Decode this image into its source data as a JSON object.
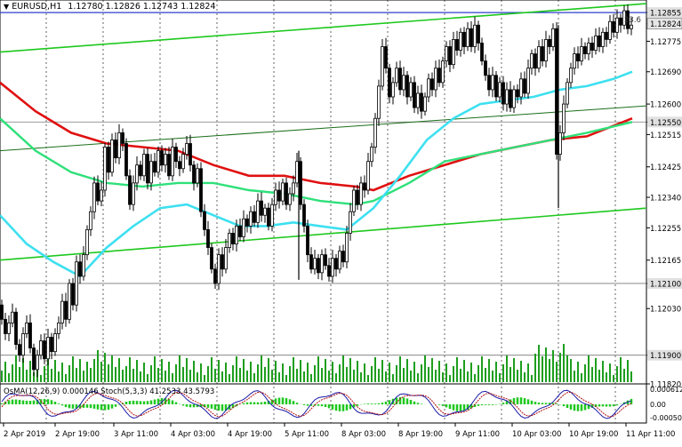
{
  "header": {
    "symbol_label": "EURUSD,H1",
    "ohlc": "1.12780 1.12826 1.12743 1.12824"
  },
  "fib_label": "23.6",
  "chart_data": [
    {
      "type": "line",
      "title": "EURUSD,H1",
      "yticks": [
        "1.12855",
        "1.12824",
        "1.12775",
        "1.12690",
        "1.12600",
        "1.12550",
        "1.12515",
        "1.12425",
        "1.12340",
        "1.12255",
        "1.12165",
        "1.12100",
        "1.12030",
        "1.11900",
        "1.11820"
      ],
      "highlighted_levels": [
        {
          "value": "1.12855",
          "color": "#2b3fcc"
        },
        {
          "value": "1.12550",
          "color": "#777777"
        },
        {
          "value": "1.12100",
          "color": "#777777"
        },
        {
          "value": "1.11900",
          "color": "#777777"
        }
      ],
      "current_price": "1.12824",
      "xticks": [
        "2 Apr 2019",
        "2 Apr 19:00",
        "3 Apr 11:00",
        "4 Apr 03:00",
        "4 Apr 19:00",
        "5 Apr 11:00",
        "8 Apr 03:00",
        "8 Apr 19:00",
        "9 Apr 11:00",
        "10 Apr 03:00",
        "10 Apr 19:00",
        "11 Apr 11:00"
      ],
      "ylim": [
        1.1182,
        1.1289
      ],
      "series": [],
      "price_path": [
        [
          0,
          1.1204
        ],
        [
          4,
          1.12
        ],
        [
          8,
          1.1196
        ],
        [
          12,
          1.1199
        ],
        [
          16,
          1.1202
        ],
        [
          20,
          1.1193
        ],
        [
          24,
          1.119
        ],
        [
          28,
          1.1196
        ],
        [
          32,
          1.1199
        ],
        [
          36,
          1.1192
        ],
        [
          40,
          1.1186
        ],
        [
          44,
          1.119
        ],
        [
          48,
          1.1194
        ],
        [
          52,
          1.1189
        ],
        [
          56,
          1.1195
        ],
        [
          60,
          1.1191
        ],
        [
          64,
          1.1196
        ],
        [
          68,
          1.1199
        ],
        [
          72,
          1.1205
        ],
        [
          76,
          1.12
        ],
        [
          80,
          1.121
        ],
        [
          84,
          1.1204
        ],
        [
          88,
          1.1216
        ],
        [
          92,
          1.1212
        ],
        [
          96,
          1.1218
        ],
        [
          100,
          1.1225
        ],
        [
          104,
          1.123
        ],
        [
          108,
          1.1238
        ],
        [
          112,
          1.1233
        ],
        [
          116,
          1.1236
        ],
        [
          120,
          1.1248
        ],
        [
          124,
          1.1241
        ],
        [
          128,
          1.125
        ],
        [
          132,
          1.1245
        ],
        [
          136,
          1.1252
        ],
        [
          140,
          1.1249
        ],
        [
          144,
          1.124
        ],
        [
          148,
          1.1232
        ],
        [
          152,
          1.1238
        ],
        [
          156,
          1.1243
        ],
        [
          160,
          1.124
        ],
        [
          164,
          1.1246
        ],
        [
          168,
          1.1238
        ],
        [
          172,
          1.1244
        ],
        [
          176,
          1.1241
        ],
        [
          180,
          1.1247
        ],
        [
          184,
          1.1243
        ],
        [
          188,
          1.1246
        ],
        [
          192,
          1.124
        ],
        [
          196,
          1.1248
        ],
        [
          200,
          1.1244
        ],
        [
          204,
          1.1242
        ],
        [
          208,
          1.1246
        ],
        [
          212,
          1.1249
        ],
        [
          216,
          1.1243
        ],
        [
          220,
          1.1238
        ],
        [
          224,
          1.1242
        ],
        [
          228,
          1.123
        ],
        [
          232,
          1.1225
        ],
        [
          236,
          1.122
        ],
        [
          240,
          1.1214
        ],
        [
          244,
          1.121
        ],
        [
          248,
          1.1218
        ],
        [
          252,
          1.1214
        ],
        [
          256,
          1.122
        ],
        [
          260,
          1.1224
        ],
        [
          264,
          1.1221
        ],
        [
          268,
          1.1226
        ],
        [
          272,
          1.1223
        ],
        [
          276,
          1.1228
        ],
        [
          280,
          1.1226
        ],
        [
          284,
          1.123
        ],
        [
          288,
          1.1227
        ],
        [
          292,
          1.1233
        ],
        [
          296,
          1.1229
        ],
        [
          300,
          1.1231
        ],
        [
          304,
          1.1226
        ],
        [
          308,
          1.1232
        ],
        [
          312,
          1.1236
        ],
        [
          316,
          1.1233
        ],
        [
          320,
          1.1238
        ],
        [
          324,
          1.1232
        ],
        [
          328,
          1.1235
        ],
        [
          332,
          1.1238
        ],
        [
          336,
          1.1244
        ],
        [
          340,
          1.1232
        ],
        [
          344,
          1.1226
        ],
        [
          348,
          1.1218
        ],
        [
          352,
          1.1214
        ],
        [
          356,
          1.1217
        ],
        [
          360,
          1.1213
        ],
        [
          364,
          1.1218
        ],
        [
          368,
          1.1215
        ],
        [
          372,
          1.1212
        ],
        [
          376,
          1.1217
        ],
        [
          380,
          1.1214
        ],
        [
          384,
          1.1219
        ],
        [
          388,
          1.1216
        ],
        [
          392,
          1.1224
        ],
        [
          396,
          1.123
        ],
        [
          400,
          1.1236
        ],
        [
          404,
          1.1232
        ],
        [
          408,
          1.1238
        ],
        [
          412,
          1.1236
        ],
        [
          416,
          1.1244
        ],
        [
          420,
          1.1248
        ],
        [
          424,
          1.1256
        ],
        [
          428,
          1.1265
        ],
        [
          432,
          1.1276
        ],
        [
          436,
          1.127
        ],
        [
          440,
          1.1262
        ],
        [
          444,
          1.1266
        ],
        [
          448,
          1.127
        ],
        [
          452,
          1.1264
        ],
        [
          456,
          1.1268
        ],
        [
          460,
          1.1262
        ],
        [
          464,
          1.1266
        ],
        [
          468,
          1.1259
        ],
        [
          472,
          1.1263
        ],
        [
          476,
          1.1258
        ],
        [
          480,
          1.1262
        ],
        [
          484,
          1.1267
        ],
        [
          488,
          1.1264
        ],
        [
          492,
          1.127
        ],
        [
          496,
          1.1266
        ],
        [
          500,
          1.1272
        ],
        [
          504,
          1.1276
        ],
        [
          508,
          1.1271
        ],
        [
          512,
          1.1278
        ],
        [
          516,
          1.1275
        ],
        [
          520,
          1.128
        ],
        [
          524,
          1.1276
        ],
        [
          528,
          1.1281
        ],
        [
          532,
          1.1276
        ],
        [
          536,
          1.1282
        ],
        [
          540,
          1.1277
        ],
        [
          544,
          1.1272
        ],
        [
          548,
          1.1268
        ],
        [
          552,
          1.1264
        ],
        [
          556,
          1.1268
        ],
        [
          560,
          1.1262
        ],
        [
          564,
          1.1266
        ],
        [
          568,
          1.126
        ],
        [
          572,
          1.1264
        ],
        [
          576,
          1.1259
        ],
        [
          580,
          1.1264
        ],
        [
          584,
          1.1262
        ],
        [
          588,
          1.1267
        ],
        [
          592,
          1.1263
        ],
        [
          596,
          1.127
        ],
        [
          600,
          1.1274
        ],
        [
          604,
          1.127
        ],
        [
          608,
          1.1276
        ],
        [
          612,
          1.1272
        ],
        [
          616,
          1.1278
        ],
        [
          620,
          1.1276
        ],
        [
          624,
          1.1281
        ],
        [
          628,
          1.1246
        ],
        [
          632,
          1.1252
        ],
        [
          636,
          1.126
        ],
        [
          640,
          1.1266
        ],
        [
          644,
          1.127
        ],
        [
          648,
          1.1274
        ],
        [
          652,
          1.1272
        ],
        [
          656,
          1.1276
        ],
        [
          660,
          1.1274
        ],
        [
          664,
          1.1277
        ],
        [
          668,
          1.1275
        ],
        [
          672,
          1.1279
        ],
        [
          676,
          1.1276
        ],
        [
          680,
          1.128
        ],
        [
          684,
          1.1278
        ],
        [
          688,
          1.1283
        ],
        [
          692,
          1.128
        ],
        [
          696,
          1.1284
        ],
        [
          700,
          1.1282
        ],
        [
          704,
          1.1286
        ],
        [
          708,
          1.1281
        ],
        [
          712,
          1.1282
        ]
      ]
    },
    {
      "type": "line",
      "title": "OsMA(12,26,9) 0.000146 Stoch(5,3,3) 41.2533 43.5793",
      "yticks": [
        "0.0006123",
        "0.00",
        "-0.000502"
      ]
    }
  ]
}
